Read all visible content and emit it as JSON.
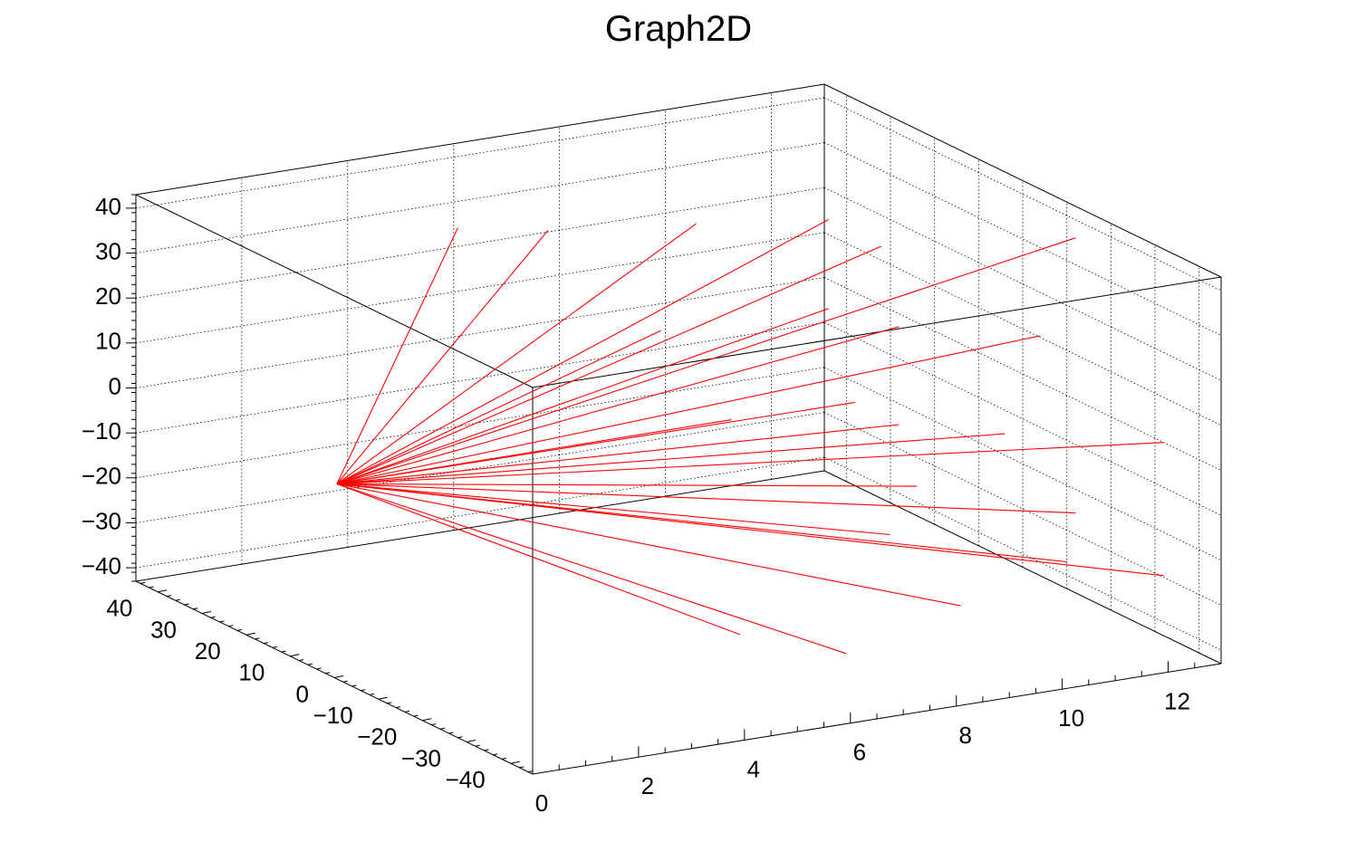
{
  "chart_data": {
    "type": "line3d",
    "title": "Graph2D",
    "x_axis": {
      "label": "",
      "range": [
        0,
        13
      ],
      "ticks": [
        0,
        2,
        4,
        6,
        8,
        10,
        12
      ],
      "tick_labels": [
        "0",
        "2",
        "4",
        "6",
        "8",
        "10",
        "12"
      ]
    },
    "y_axis": {
      "label": "",
      "range": [
        -45,
        45
      ],
      "ticks": [
        -40,
        -30,
        -20,
        -10,
        0,
        10,
        20,
        30,
        40
      ],
      "tick_labels": [
        "−40",
        "−30",
        "−20",
        "−10",
        "0",
        "10",
        "20",
        "30",
        "40"
      ]
    },
    "z_axis": {
      "label": "",
      "range": [
        -43,
        43
      ],
      "ticks": [
        -40,
        -30,
        -20,
        -10,
        0,
        10,
        20,
        30,
        40
      ],
      "tick_labels": [
        "−40",
        "−30",
        "−20",
        "−10",
        "0",
        "10",
        "20",
        "30",
        "40"
      ]
    },
    "grid": true,
    "line_color": "#ff0000",
    "series": [
      {
        "points": [
          [
            0.05,
            0,
            0
          ],
          [
            4.0,
            20,
            40
          ]
        ]
      },
      {
        "points": [
          [
            0.05,
            0,
            0
          ],
          [
            5.2,
            14,
            40
          ]
        ]
      },
      {
        "points": [
          [
            0.05,
            0,
            0
          ],
          [
            7.5,
            8,
            40
          ]
        ]
      },
      {
        "points": [
          [
            0.05,
            0,
            0
          ],
          [
            9.5,
            2,
            40
          ]
        ]
      },
      {
        "points": [
          [
            0.05,
            0,
            0
          ],
          [
            10.0,
            -4,
            36
          ]
        ]
      },
      {
        "points": [
          [
            0.05,
            0,
            0
          ],
          [
            13.0,
            -12,
            36
          ]
        ]
      },
      {
        "points": [
          [
            0.05,
            0,
            0
          ],
          [
            6.5,
            4,
            20
          ]
        ]
      },
      {
        "points": [
          [
            0.05,
            0,
            0
          ],
          [
            9.0,
            -4,
            24
          ]
        ]
      },
      {
        "points": [
          [
            0.05,
            0,
            0
          ],
          [
            10.0,
            -8,
            20
          ]
        ]
      },
      {
        "points": [
          [
            0.05,
            0,
            0
          ],
          [
            12.0,
            -16,
            18
          ]
        ]
      },
      {
        "points": [
          [
            0.05,
            0,
            0
          ],
          [
            7.0,
            -6,
            4
          ]
        ]
      },
      {
        "points": [
          [
            0.05,
            0,
            0
          ],
          [
            9.0,
            -10,
            6
          ]
        ]
      },
      {
        "points": [
          [
            0.05,
            0,
            0
          ],
          [
            9.5,
            -14,
            2
          ]
        ]
      },
      {
        "points": [
          [
            0.05,
            0,
            0
          ],
          [
            11.0,
            -20,
            0
          ]
        ]
      },
      {
        "points": [
          [
            0.05,
            0,
            0
          ],
          [
            13.0,
            -32,
            0
          ]
        ]
      },
      {
        "points": [
          [
            0.05,
            0,
            0
          ],
          [
            9.0,
            -24,
            -6
          ]
        ]
      },
      {
        "points": [
          [
            0.05,
            0,
            0
          ],
          [
            11.0,
            -36,
            -10
          ]
        ]
      },
      {
        "points": [
          [
            0.05,
            0,
            0
          ],
          [
            8.0,
            -30,
            -12
          ]
        ]
      },
      {
        "points": [
          [
            0.05,
            0,
            0
          ],
          [
            10.5,
            -40,
            -18
          ]
        ]
      },
      {
        "points": [
          [
            0.05,
            0,
            0
          ],
          [
            12.0,
            -44,
            -22
          ]
        ]
      },
      {
        "points": [
          [
            0.05,
            0,
            0
          ],
          [
            8.5,
            -40,
            -24
          ]
        ]
      },
      {
        "points": [
          [
            0.05,
            0,
            0
          ],
          [
            4.0,
            -44,
            -20
          ]
        ]
      },
      {
        "points": [
          [
            0.05,
            0,
            0
          ],
          [
            6.0,
            -44,
            -28
          ]
        ]
      }
    ]
  }
}
